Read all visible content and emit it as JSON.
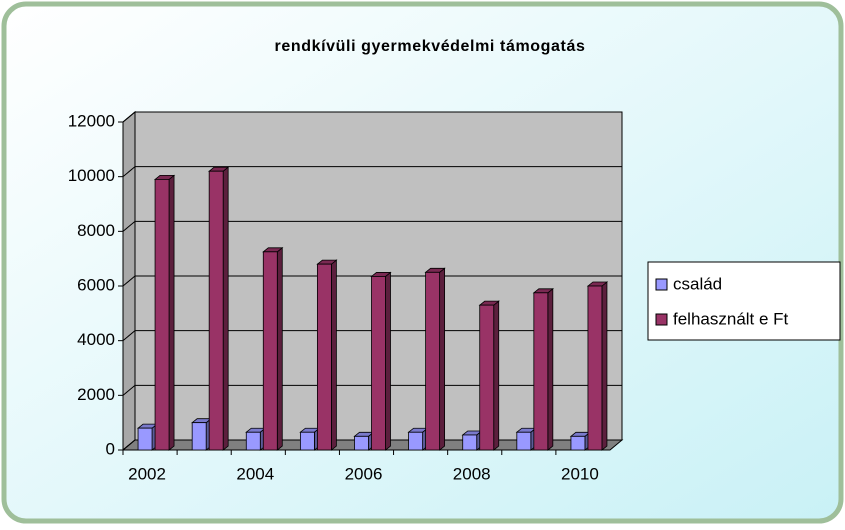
{
  "chart_data": {
    "type": "bar3d",
    "title": "rendkívüli gyermekvédelmi támogatás",
    "categories": [
      "2002",
      null,
      "2004",
      null,
      "2006",
      null,
      "2008",
      null,
      "2010"
    ],
    "series": [
      {
        "name": "család",
        "color": "#9999ff",
        "values": [
          800,
          1000,
          650,
          650,
          500,
          650,
          550,
          650,
          500
        ]
      },
      {
        "name": "felhasznált e Ft",
        "color": "#993366",
        "values": [
          9900,
          10200,
          7250,
          6800,
          6350,
          6500,
          5300,
          5750,
          6000
        ]
      }
    ],
    "ylim": [
      0,
      12000
    ],
    "yticks": [
      0,
      2000,
      4000,
      6000,
      8000,
      10000,
      12000
    ],
    "grid": true,
    "legend": "right"
  }
}
